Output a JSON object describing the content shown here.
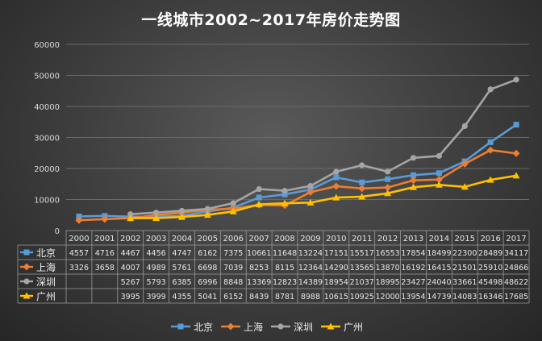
{
  "chart_data": {
    "type": "line",
    "title": "一线城市2002~2017年房价走势图",
    "categories": [
      "2000",
      "2001",
      "2002",
      "2003",
      "2004",
      "2005",
      "2006",
      "2007",
      "2008",
      "2009",
      "2010",
      "2011",
      "2012",
      "2013",
      "2014",
      "2015",
      "2016",
      "2017"
    ],
    "ylim": [
      0,
      60000
    ],
    "yticks": [
      "0",
      "10000",
      "20000",
      "30000",
      "40000",
      "50000",
      "60000"
    ],
    "grid": true,
    "legend_position": "bottom",
    "data_table": true,
    "series": [
      {
        "name": "北京",
        "color": "#5b9bd5",
        "marker": "square",
        "values": [
          4557,
          4716,
          4467,
          4456,
          4747,
          6162,
          7375,
          10661,
          11648,
          13224,
          17151,
          15517,
          16553,
          17854,
          18499,
          22300,
          28489,
          34117
        ]
      },
      {
        "name": "上海",
        "color": "#ed7d31",
        "marker": "diamond",
        "values": [
          3326,
          3658,
          4007,
          4989,
          5761,
          6698,
          7039,
          8253,
          8115,
          12364,
          14290,
          13565,
          13870,
          16192,
          16415,
          21501,
          25910,
          24866
        ]
      },
      {
        "name": "深圳",
        "color": "#a5a5a5",
        "marker": "circle",
        "values": [
          null,
          null,
          5267,
          5793,
          6385,
          6996,
          8848,
          13369,
          12823,
          14389,
          18954,
          21037,
          18995,
          23427,
          24040,
          33661,
          45498,
          48622
        ]
      },
      {
        "name": "广州",
        "color": "#ffc000",
        "marker": "triangle",
        "values": [
          null,
          null,
          3995,
          3999,
          4355,
          5041,
          6152,
          8439,
          8781,
          8988,
          10615,
          10925,
          12000,
          13954,
          14739,
          14083,
          16346,
          17685
        ]
      }
    ]
  }
}
